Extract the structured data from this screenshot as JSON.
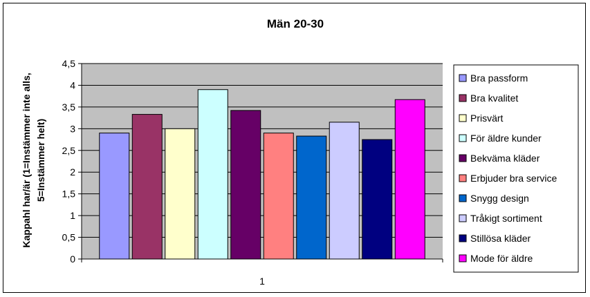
{
  "chart_data": {
    "type": "bar",
    "title": "Män 20-30",
    "ylabel_lines": [
      "Kappahl har/är (1=Instämmer inte alls,",
      "5=Instämmer helt)"
    ],
    "xlabel": "",
    "categories": [
      "1"
    ],
    "ylim": [
      0,
      4.5
    ],
    "yticks": [
      "0",
      "0,5",
      "1",
      "1,5",
      "2",
      "2,5",
      "3",
      "3,5",
      "4",
      "4,5"
    ],
    "grid": true,
    "legend_position": "right",
    "series": [
      {
        "name": "Bra passform",
        "values": [
          2.9
        ],
        "color": "#9999ff"
      },
      {
        "name": "Bra kvalitet",
        "values": [
          3.33
        ],
        "color": "#993366"
      },
      {
        "name": "Prisvärt",
        "values": [
          3.0
        ],
        "color": "#ffffcc"
      },
      {
        "name": "För äldre kunder",
        "values": [
          3.9
        ],
        "color": "#ccffff"
      },
      {
        "name": "Bekväma kläder",
        "values": [
          3.42
        ],
        "color": "#660066"
      },
      {
        "name": "Erbjuder bra service",
        "values": [
          2.9
        ],
        "color": "#ff8080"
      },
      {
        "name": "Snygg design",
        "values": [
          2.83
        ],
        "color": "#0066cc"
      },
      {
        "name": "Tråkigt sortiment",
        "values": [
          3.15
        ],
        "color": "#ccccff"
      },
      {
        "name": "Stillösa kläder",
        "values": [
          2.75
        ],
        "color": "#000080"
      },
      {
        "name": "Mode för äldre",
        "values": [
          3.67
        ],
        "color": "#ff00ff"
      }
    ],
    "plot_background": "#c0c0c0"
  }
}
